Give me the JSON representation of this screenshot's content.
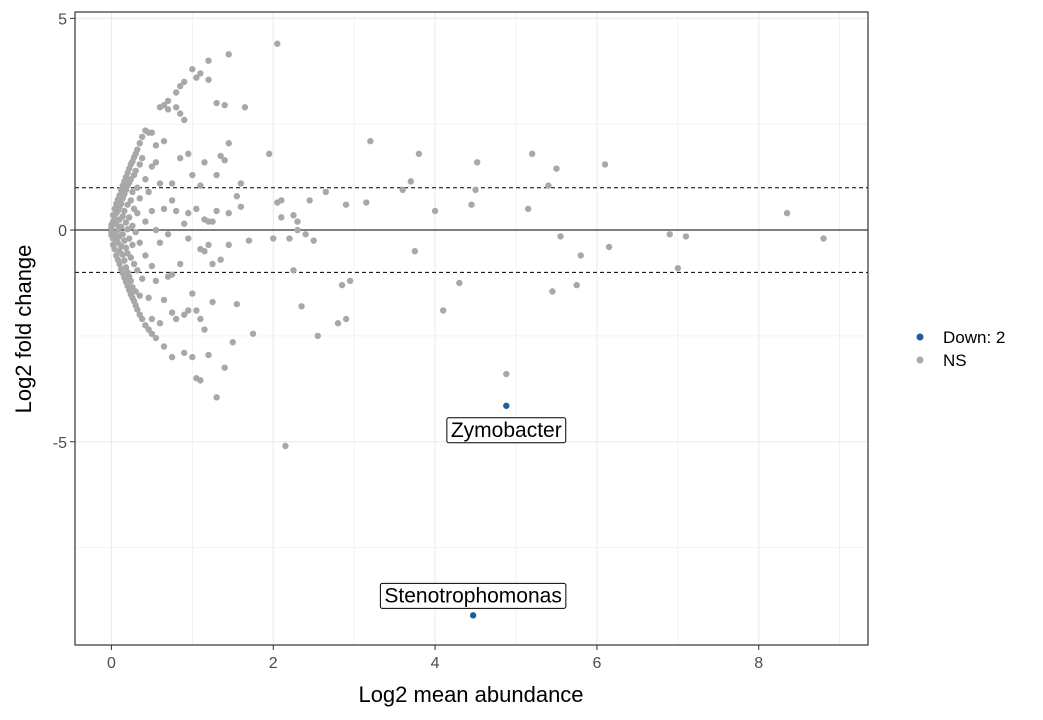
{
  "chart_data": {
    "type": "scatter",
    "title": "",
    "xlabel": "Log2 mean abundance",
    "ylabel": "Log2 fold change",
    "xlim": [
      -0.45,
      9.35
    ],
    "ylim": [
      -9.8,
      5.15
    ],
    "x_ticks": [
      0,
      2,
      4,
      6,
      8
    ],
    "y_ticks": [
      5,
      0,
      -5
    ],
    "x_tick_labels": [
      "0",
      "2",
      "4",
      "6",
      "8"
    ],
    "y_tick_labels": [
      "5",
      "0",
      "-5"
    ],
    "grid": true,
    "legend_position": "right",
    "reference_lines": {
      "solid": [
        0
      ],
      "dashed": [
        1,
        -1
      ]
    },
    "colors": {
      "down": "#1f5e96",
      "ns": "#a8a8a8",
      "grid": "#ebebeb"
    },
    "series": [
      {
        "name": "Down: 2",
        "color": "#1f5e96",
        "points": [
          {
            "x": 4.88,
            "y": -4.15
          },
          {
            "x": 4.47,
            "y": -9.1
          }
        ]
      },
      {
        "name": "NS",
        "color": "#a8a8a8",
        "points": [
          {
            "x": 0.0,
            "y": 0.12
          },
          {
            "x": 0.0,
            "y": 0.05
          },
          {
            "x": 0.0,
            "y": -0.04
          },
          {
            "x": 0.0,
            "y": -0.12
          },
          {
            "x": 0.02,
            "y": 0.35
          },
          {
            "x": 0.02,
            "y": 0.2
          },
          {
            "x": 0.02,
            "y": -0.2
          },
          {
            "x": 0.02,
            "y": -0.35
          },
          {
            "x": 0.04,
            "y": 0.5
          },
          {
            "x": 0.04,
            "y": 0.28
          },
          {
            "x": 0.04,
            "y": -0.08
          },
          {
            "x": 0.04,
            "y": -0.45
          },
          {
            "x": 0.06,
            "y": 0.62
          },
          {
            "x": 0.06,
            "y": 0.4
          },
          {
            "x": 0.06,
            "y": 0.14
          },
          {
            "x": 0.06,
            "y": -0.22
          },
          {
            "x": 0.06,
            "y": -0.6
          },
          {
            "x": 0.08,
            "y": 0.72
          },
          {
            "x": 0.08,
            "y": 0.45
          },
          {
            "x": 0.08,
            "y": 0.0
          },
          {
            "x": 0.08,
            "y": -0.3
          },
          {
            "x": 0.08,
            "y": -0.7
          },
          {
            "x": 0.1,
            "y": 0.82
          },
          {
            "x": 0.1,
            "y": 0.55
          },
          {
            "x": 0.1,
            "y": 0.25
          },
          {
            "x": 0.1,
            "y": -0.15
          },
          {
            "x": 0.1,
            "y": -0.5
          },
          {
            "x": 0.1,
            "y": -0.8
          },
          {
            "x": 0.12,
            "y": 0.95
          },
          {
            "x": 0.12,
            "y": 0.62
          },
          {
            "x": 0.12,
            "y": 0.08
          },
          {
            "x": 0.12,
            "y": -0.38
          },
          {
            "x": 0.12,
            "y": -0.92
          },
          {
            "x": 0.14,
            "y": 1.05
          },
          {
            "x": 0.14,
            "y": 0.75
          },
          {
            "x": 0.14,
            "y": 0.32
          },
          {
            "x": 0.14,
            "y": -0.1
          },
          {
            "x": 0.14,
            "y": -0.58
          },
          {
            "x": 0.14,
            "y": -1.02
          },
          {
            "x": 0.16,
            "y": 1.15
          },
          {
            "x": 0.16,
            "y": 0.85
          },
          {
            "x": 0.16,
            "y": 0.45
          },
          {
            "x": 0.16,
            "y": -0.25
          },
          {
            "x": 0.16,
            "y": -0.72
          },
          {
            "x": 0.16,
            "y": -1.12
          },
          {
            "x": 0.18,
            "y": 1.25
          },
          {
            "x": 0.18,
            "y": 0.95
          },
          {
            "x": 0.18,
            "y": 0.18
          },
          {
            "x": 0.18,
            "y": -0.42
          },
          {
            "x": 0.18,
            "y": -0.88
          },
          {
            "x": 0.18,
            "y": -1.22
          },
          {
            "x": 0.2,
            "y": 1.35
          },
          {
            "x": 0.2,
            "y": 1.05
          },
          {
            "x": 0.2,
            "y": 0.6
          },
          {
            "x": 0.2,
            "y": 0.02
          },
          {
            "x": 0.2,
            "y": -0.55
          },
          {
            "x": 0.2,
            "y": -1.0
          },
          {
            "x": 0.2,
            "y": -1.32
          },
          {
            "x": 0.22,
            "y": 1.45
          },
          {
            "x": 0.22,
            "y": 1.12
          },
          {
            "x": 0.22,
            "y": 0.3
          },
          {
            "x": 0.22,
            "y": -0.2
          },
          {
            "x": 0.22,
            "y": -1.1
          },
          {
            "x": 0.22,
            "y": -1.42
          },
          {
            "x": 0.24,
            "y": 1.55
          },
          {
            "x": 0.24,
            "y": 1.2
          },
          {
            "x": 0.24,
            "y": 0.7
          },
          {
            "x": 0.24,
            "y": -0.65
          },
          {
            "x": 0.24,
            "y": -1.2
          },
          {
            "x": 0.24,
            "y": -1.52
          },
          {
            "x": 0.26,
            "y": 1.62
          },
          {
            "x": 0.26,
            "y": 0.9
          },
          {
            "x": 0.26,
            "y": 0.1
          },
          {
            "x": 0.26,
            "y": -0.35
          },
          {
            "x": 0.26,
            "y": -1.35
          },
          {
            "x": 0.26,
            "y": -1.6
          },
          {
            "x": 0.28,
            "y": 1.72
          },
          {
            "x": 0.28,
            "y": 1.3
          },
          {
            "x": 0.28,
            "y": 0.5
          },
          {
            "x": 0.28,
            "y": -0.8
          },
          {
            "x": 0.28,
            "y": -1.68
          },
          {
            "x": 0.3,
            "y": 1.8
          },
          {
            "x": 0.3,
            "y": 1.4
          },
          {
            "x": 0.3,
            "y": -0.05
          },
          {
            "x": 0.3,
            "y": -1.45
          },
          {
            "x": 0.3,
            "y": -1.78
          },
          {
            "x": 0.32,
            "y": 1.9
          },
          {
            "x": 0.32,
            "y": 1.0
          },
          {
            "x": 0.32,
            "y": 0.4
          },
          {
            "x": 0.32,
            "y": -0.95
          },
          {
            "x": 0.32,
            "y": -1.88
          },
          {
            "x": 0.35,
            "y": 2.05
          },
          {
            "x": 0.35,
            "y": 1.55
          },
          {
            "x": 0.35,
            "y": 0.75
          },
          {
            "x": 0.35,
            "y": -0.3
          },
          {
            "x": 0.35,
            "y": -1.55
          },
          {
            "x": 0.35,
            "y": -2.0
          },
          {
            "x": 0.38,
            "y": 2.2
          },
          {
            "x": 0.38,
            "y": 1.7
          },
          {
            "x": 0.38,
            "y": -1.15
          },
          {
            "x": 0.38,
            "y": -2.1
          },
          {
            "x": 0.42,
            "y": 2.35
          },
          {
            "x": 0.42,
            "y": 1.2
          },
          {
            "x": 0.42,
            "y": 0.2
          },
          {
            "x": 0.42,
            "y": -0.6
          },
          {
            "x": 0.42,
            "y": -2.25
          },
          {
            "x": 0.46,
            "y": 2.3
          },
          {
            "x": 0.46,
            "y": 0.9
          },
          {
            "x": 0.46,
            "y": -1.6
          },
          {
            "x": 0.46,
            "y": -2.35
          },
          {
            "x": 0.5,
            "y": 2.3
          },
          {
            "x": 0.5,
            "y": 1.5
          },
          {
            "x": 0.5,
            "y": 0.45
          },
          {
            "x": 0.5,
            "y": -0.85
          },
          {
            "x": 0.5,
            "y": -2.1
          },
          {
            "x": 0.5,
            "y": -2.45
          },
          {
            "x": 0.55,
            "y": 2.0
          },
          {
            "x": 0.55,
            "y": 1.6
          },
          {
            "x": 0.55,
            "y": 0.0
          },
          {
            "x": 0.55,
            "y": -1.2
          },
          {
            "x": 0.55,
            "y": -2.55
          },
          {
            "x": 0.6,
            "y": 2.9
          },
          {
            "x": 0.6,
            "y": 1.1
          },
          {
            "x": 0.6,
            "y": -0.3
          },
          {
            "x": 0.6,
            "y": -2.2
          },
          {
            "x": 0.65,
            "y": 2.95
          },
          {
            "x": 0.65,
            "y": 2.1
          },
          {
            "x": 0.65,
            "y": 0.5
          },
          {
            "x": 0.65,
            "y": -1.65
          },
          {
            "x": 0.65,
            "y": -2.75
          },
          {
            "x": 0.7,
            "y": 3.05
          },
          {
            "x": 0.7,
            "y": 2.85
          },
          {
            "x": 0.7,
            "y": -0.1
          },
          {
            "x": 0.7,
            "y": -1.1
          },
          {
            "x": 0.75,
            "y": 1.1
          },
          {
            "x": 0.75,
            "y": 0.7
          },
          {
            "x": 0.75,
            "y": -1.05
          },
          {
            "x": 0.75,
            "y": -1.95
          },
          {
            "x": 0.75,
            "y": -3.0
          },
          {
            "x": 0.8,
            "y": 3.25
          },
          {
            "x": 0.8,
            "y": 2.9
          },
          {
            "x": 0.8,
            "y": 0.45
          },
          {
            "x": 0.8,
            "y": -2.1
          },
          {
            "x": 0.85,
            "y": 3.4
          },
          {
            "x": 0.85,
            "y": 2.75
          },
          {
            "x": 0.85,
            "y": 1.7
          },
          {
            "x": 0.85,
            "y": -0.8
          },
          {
            "x": 0.9,
            "y": 3.5
          },
          {
            "x": 0.9,
            "y": 2.6
          },
          {
            "x": 0.9,
            "y": 0.15
          },
          {
            "x": 0.9,
            "y": -2.0
          },
          {
            "x": 0.9,
            "y": -2.9
          },
          {
            "x": 0.95,
            "y": 1.8
          },
          {
            "x": 0.95,
            "y": 0.4
          },
          {
            "x": 0.95,
            "y": -0.2
          },
          {
            "x": 0.95,
            "y": -1.9
          },
          {
            "x": 1.0,
            "y": 3.8
          },
          {
            "x": 1.0,
            "y": 1.3
          },
          {
            "x": 1.0,
            "y": -1.5
          },
          {
            "x": 1.0,
            "y": -3.0
          },
          {
            "x": 1.05,
            "y": 3.6
          },
          {
            "x": 1.05,
            "y": 0.5
          },
          {
            "x": 1.05,
            "y": -1.9
          },
          {
            "x": 1.05,
            "y": -3.5
          },
          {
            "x": 1.1,
            "y": 3.7
          },
          {
            "x": 1.1,
            "y": 1.05
          },
          {
            "x": 1.1,
            "y": -0.45
          },
          {
            "x": 1.1,
            "y": -2.1
          },
          {
            "x": 1.1,
            "y": -3.55
          },
          {
            "x": 1.15,
            "y": 1.6
          },
          {
            "x": 1.15,
            "y": 0.25
          },
          {
            "x": 1.15,
            "y": -0.5
          },
          {
            "x": 1.15,
            "y": -2.35
          },
          {
            "x": 1.2,
            "y": 4.0
          },
          {
            "x": 1.2,
            "y": 3.55
          },
          {
            "x": 1.2,
            "y": 0.2
          },
          {
            "x": 1.2,
            "y": -0.35
          },
          {
            "x": 1.2,
            "y": -2.95
          },
          {
            "x": 1.25,
            "y": 0.2
          },
          {
            "x": 1.25,
            "y": -0.8
          },
          {
            "x": 1.25,
            "y": -1.7
          },
          {
            "x": 1.3,
            "y": 3.0
          },
          {
            "x": 1.3,
            "y": 1.3
          },
          {
            "x": 1.3,
            "y": 0.45
          },
          {
            "x": 1.3,
            "y": -3.95
          },
          {
            "x": 1.35,
            "y": 1.75
          },
          {
            "x": 1.35,
            "y": -0.7
          },
          {
            "x": 1.4,
            "y": 2.95
          },
          {
            "x": 1.4,
            "y": 1.65
          },
          {
            "x": 1.4,
            "y": -3.25
          },
          {
            "x": 1.45,
            "y": 4.15
          },
          {
            "x": 1.45,
            "y": 2.05
          },
          {
            "x": 1.45,
            "y": 0.4
          },
          {
            "x": 1.45,
            "y": -0.35
          },
          {
            "x": 1.5,
            "y": -2.65
          },
          {
            "x": 1.55,
            "y": 0.8
          },
          {
            "x": 1.55,
            "y": -1.75
          },
          {
            "x": 1.6,
            "y": 1.1
          },
          {
            "x": 1.6,
            "y": 0.55
          },
          {
            "x": 1.65,
            "y": 2.9
          },
          {
            "x": 1.7,
            "y": -0.25
          },
          {
            "x": 1.75,
            "y": -2.45
          },
          {
            "x": 1.95,
            "y": 1.8
          },
          {
            "x": 2.0,
            "y": -0.2
          },
          {
            "x": 2.05,
            "y": 0.65
          },
          {
            "x": 2.05,
            "y": 4.4
          },
          {
            "x": 2.1,
            "y": 0.3
          },
          {
            "x": 2.1,
            "y": 0.7
          },
          {
            "x": 2.15,
            "y": -5.1
          },
          {
            "x": 2.2,
            "y": -0.2
          },
          {
            "x": 2.25,
            "y": 0.35
          },
          {
            "x": 2.25,
            "y": -0.95
          },
          {
            "x": 2.3,
            "y": 0.2
          },
          {
            "x": 2.3,
            "y": 0.0
          },
          {
            "x": 2.35,
            "y": -1.8
          },
          {
            "x": 2.4,
            "y": -0.1
          },
          {
            "x": 2.45,
            "y": 0.7
          },
          {
            "x": 2.5,
            "y": -0.25
          },
          {
            "x": 2.55,
            "y": -2.5
          },
          {
            "x": 2.65,
            "y": 0.9
          },
          {
            "x": 2.8,
            "y": -2.2
          },
          {
            "x": 2.85,
            "y": -1.3
          },
          {
            "x": 2.9,
            "y": 0.6
          },
          {
            "x": 2.9,
            "y": -2.1
          },
          {
            "x": 2.95,
            "y": -1.2
          },
          {
            "x": 3.15,
            "y": 0.65
          },
          {
            "x": 3.2,
            "y": 2.1
          },
          {
            "x": 3.6,
            "y": 0.95
          },
          {
            "x": 3.7,
            "y": 1.15
          },
          {
            "x": 3.75,
            "y": -0.5
          },
          {
            "x": 3.8,
            "y": 1.8
          },
          {
            "x": 4.0,
            "y": 0.45
          },
          {
            "x": 4.1,
            "y": -1.9
          },
          {
            "x": 4.3,
            "y": -1.25
          },
          {
            "x": 4.45,
            "y": 0.6
          },
          {
            "x": 4.5,
            "y": 0.95
          },
          {
            "x": 4.52,
            "y": 1.6
          },
          {
            "x": 4.88,
            "y": -3.4
          },
          {
            "x": 5.15,
            "y": 0.5
          },
          {
            "x": 5.2,
            "y": 1.8
          },
          {
            "x": 5.4,
            "y": 1.05
          },
          {
            "x": 5.45,
            "y": -1.45
          },
          {
            "x": 5.5,
            "y": 1.45
          },
          {
            "x": 5.55,
            "y": -0.15
          },
          {
            "x": 5.75,
            "y": -1.3
          },
          {
            "x": 5.8,
            "y": -0.6
          },
          {
            "x": 6.1,
            "y": 1.55
          },
          {
            "x": 6.15,
            "y": -0.4
          },
          {
            "x": 6.9,
            "y": -0.1
          },
          {
            "x": 7.0,
            "y": -0.9
          },
          {
            "x": 7.1,
            "y": -0.15
          },
          {
            "x": 8.35,
            "y": 0.4
          },
          {
            "x": 8.8,
            "y": -0.2
          }
        ]
      }
    ],
    "labels": [
      {
        "text": "Zymobacter",
        "x": 4.88,
        "y": -4.15
      },
      {
        "text": "Stenotrophomonas",
        "x": 4.47,
        "y": -9.1
      }
    ]
  }
}
